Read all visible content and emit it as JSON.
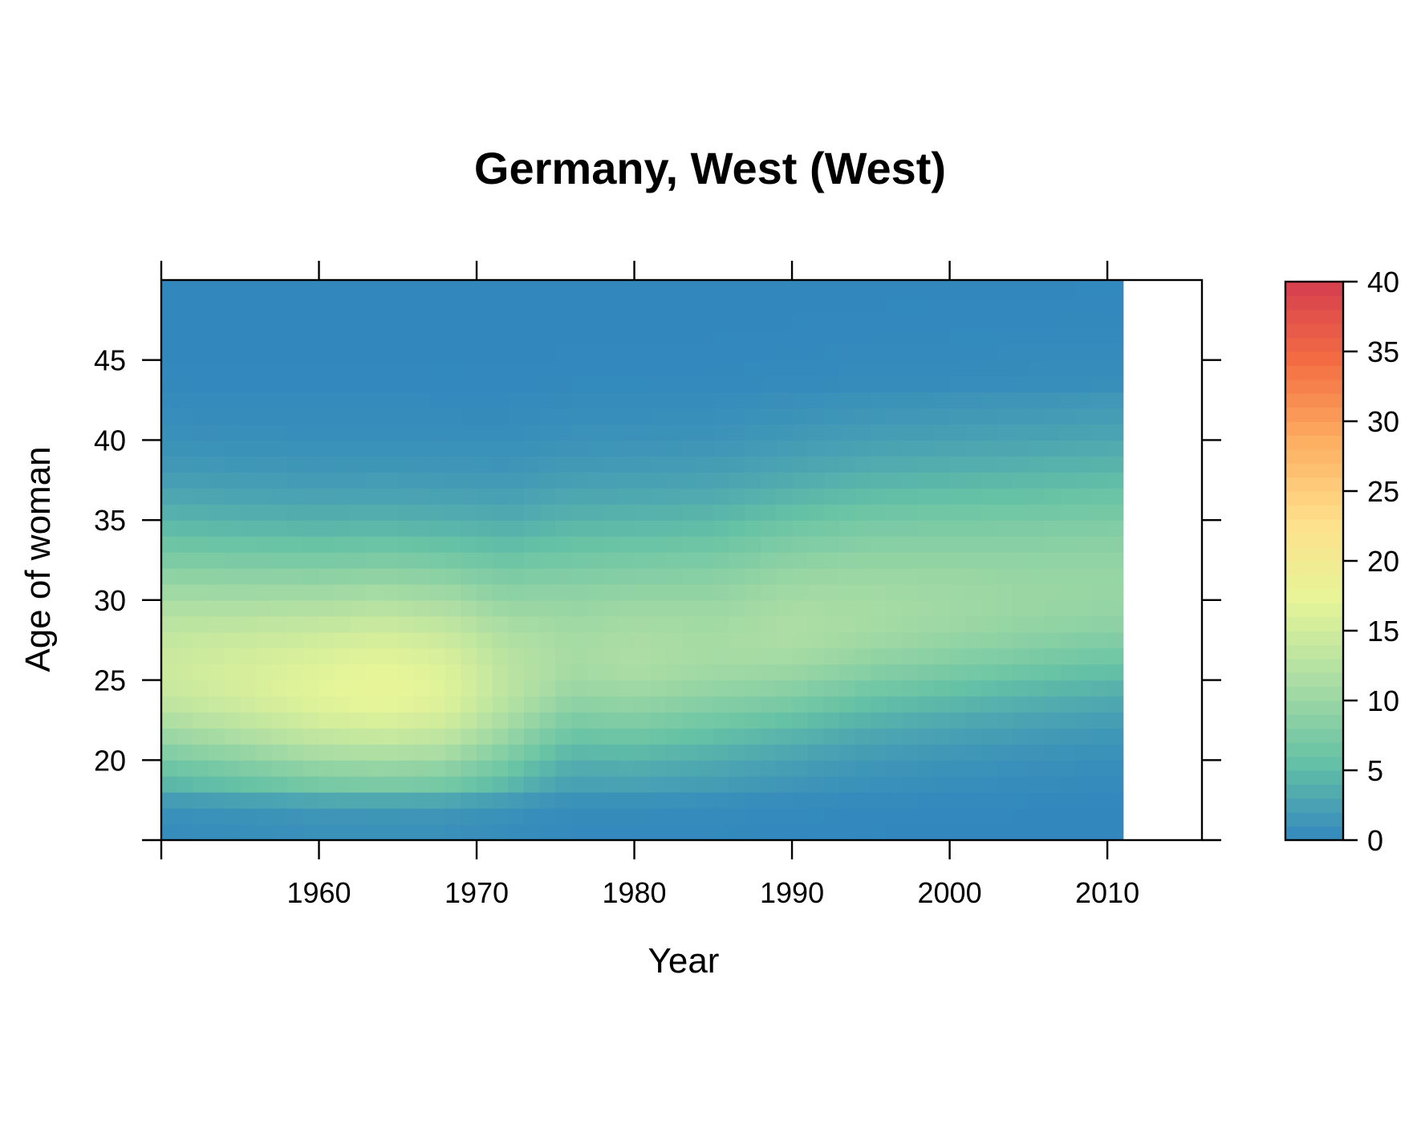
{
  "chart_data": {
    "type": "heatmap",
    "title": "Germany, West (West)",
    "xlabel": "Year",
    "ylabel": "Age of woman",
    "xlim": [
      1950,
      2016
    ],
    "ylim": [
      15,
      50
    ],
    "x_ticks": [
      1960,
      1970,
      1980,
      1990,
      2000,
      2010
    ],
    "y_ticks": [
      20,
      25,
      30,
      35,
      40,
      45
    ],
    "colorbar": {
      "range": [
        0,
        40
      ],
      "ticks": [
        0,
        5,
        10,
        15,
        20,
        25,
        30,
        35,
        40
      ],
      "palette": [
        "#3288bd",
        "#66c2a5",
        "#abdda4",
        "#e6f598",
        "#fee08b",
        "#fdae61",
        "#f46d43",
        "#d53e4f"
      ]
    },
    "data_years": [
      1950,
      2010
    ],
    "data_ages": [
      15,
      49
    ],
    "value_model": {
      "description_keypoints": "peak around 1963-1966 near age 24-25",
      "anchors": [
        {
          "year": 1950,
          "peak_age": 25.5,
          "peak": 14.5
        },
        {
          "year": 1955,
          "peak_age": 25.0,
          "peak": 15.5
        },
        {
          "year": 1960,
          "peak_age": 24.5,
          "peak": 16.8
        },
        {
          "year": 1964,
          "peak_age": 24.5,
          "peak": 17.5
        },
        {
          "year": 1968,
          "peak_age": 24.5,
          "peak": 16.5
        },
        {
          "year": 1972,
          "peak_age": 25.0,
          "peak": 13.0
        },
        {
          "year": 1976,
          "peak_age": 26.5,
          "peak": 11.0
        },
        {
          "year": 1980,
          "peak_age": 26.5,
          "peak": 11.5
        },
        {
          "year": 1985,
          "peak_age": 27.0,
          "peak": 11.0
        },
        {
          "year": 1990,
          "peak_age": 28.0,
          "peak": 11.5
        },
        {
          "year": 1995,
          "peak_age": 29.0,
          "peak": 11.0
        },
        {
          "year": 2000,
          "peak_age": 29.5,
          "peak": 10.5
        },
        {
          "year": 2005,
          "peak_age": 30.0,
          "peak": 10.0
        },
        {
          "year": 2010,
          "peak_age": 30.5,
          "peak": 9.8
        }
      ]
    }
  }
}
